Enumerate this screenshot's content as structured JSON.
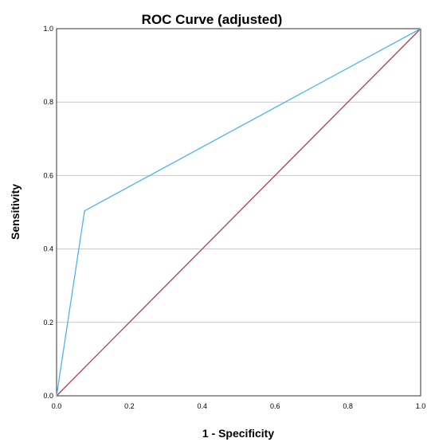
{
  "chart_data": {
    "type": "line",
    "title": "ROC Curve (adjusted)",
    "xlabel": "1 - Specificity",
    "ylabel": "Sensitivity",
    "xlim": [
      0,
      1
    ],
    "ylim": [
      0,
      1
    ],
    "x_ticks": [
      "0.0",
      "0.2",
      "0.4",
      "0.6",
      "0.8",
      "1.0"
    ],
    "y_ticks": [
      "0.0",
      "0.2",
      "0.4",
      "0.6",
      "0.8",
      "1.0"
    ],
    "grid": "horizontal",
    "legend": "none",
    "series": [
      {
        "color": "#4eb3ef",
        "points": [
          {
            "x": 0.0,
            "y": 0.0
          },
          {
            "x": 0.077,
            "y": 0.504
          },
          {
            "x": 1.0,
            "y": 1.0
          }
        ]
      },
      {
        "color": "#b23c55",
        "points": [
          {
            "x": 0.0,
            "y": 0.0
          },
          {
            "x": 1.0,
            "y": 1.0
          }
        ]
      }
    ],
    "colors": {
      "grid": "#c8c8c8",
      "frame": "#333333"
    }
  }
}
